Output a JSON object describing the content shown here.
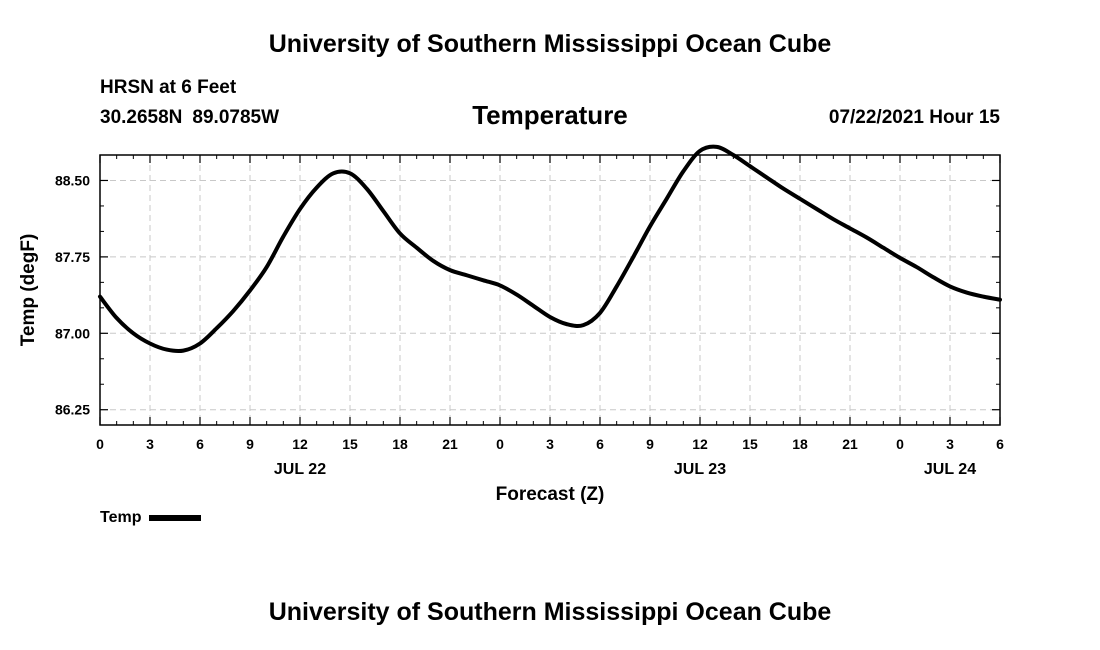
{
  "header": {
    "title": "University of Southern Mississippi Ocean Cube",
    "station": "HRSN at 6 Feet",
    "lat": "30.2658N",
    "lon": "89.0785W",
    "variable": "Temperature",
    "datetime": "07/22/2021 Hour 15"
  },
  "footer": {
    "title": "University of Southern Mississippi Ocean Cube"
  },
  "legend": {
    "label": "Temp",
    "color": "#000000"
  },
  "chart_data": {
    "type": "line",
    "title": "Temperature",
    "xlabel": "Forecast (Z)",
    "ylabel": "Temp (degF)",
    "xlim": [
      0,
      54
    ],
    "ylim": [
      86.1,
      88.75
    ],
    "grid": true,
    "legend_position": "bottom-left",
    "x_ticks": [
      0,
      3,
      6,
      9,
      12,
      15,
      18,
      21,
      24,
      27,
      30,
      33,
      36,
      39,
      42,
      45,
      48,
      51,
      54
    ],
    "x_tick_labels": [
      "0",
      "3",
      "6",
      "9",
      "12",
      "15",
      "18",
      "21",
      "0",
      "3",
      "6",
      "9",
      "12",
      "15",
      "18",
      "21",
      "0",
      "3",
      "6"
    ],
    "y_ticks": [
      86.25,
      87.0,
      87.75,
      88.5
    ],
    "y_tick_labels": [
      "86.25",
      "87.00",
      "87.75",
      "88.50"
    ],
    "date_labels": [
      {
        "x": 12,
        "label": "JUL 22"
      },
      {
        "x": 36,
        "label": "JUL 23"
      },
      {
        "x": 51,
        "label": "JUL 24"
      }
    ],
    "series": [
      {
        "name": "Temp",
        "color": "#000000",
        "x": [
          0,
          1,
          2,
          3,
          4,
          5,
          6,
          7,
          8,
          9,
          10,
          11,
          12,
          13,
          14,
          15,
          16,
          17,
          18,
          19,
          20,
          21,
          22,
          23,
          24,
          25,
          26,
          27,
          28,
          29,
          30,
          31,
          32,
          33,
          34,
          35,
          36,
          37,
          38,
          39,
          40,
          41,
          42,
          43,
          44,
          45,
          46,
          47,
          48,
          49,
          50,
          51,
          52,
          53,
          54
        ],
        "values": [
          87.36,
          87.15,
          87.0,
          86.9,
          86.84,
          86.83,
          86.9,
          87.05,
          87.22,
          87.42,
          87.65,
          87.95,
          88.22,
          88.43,
          88.57,
          88.57,
          88.42,
          88.2,
          87.98,
          87.84,
          87.71,
          87.62,
          87.57,
          87.52,
          87.47,
          87.38,
          87.27,
          87.16,
          87.09,
          87.08,
          87.2,
          87.46,
          87.75,
          88.05,
          88.32,
          88.59,
          88.79,
          88.83,
          88.75,
          88.64,
          88.53,
          88.42,
          88.32,
          88.22,
          88.12,
          88.03,
          87.94,
          87.84,
          87.74,
          87.65,
          87.55,
          87.46,
          87.4,
          87.36,
          87.33
        ]
      }
    ]
  }
}
